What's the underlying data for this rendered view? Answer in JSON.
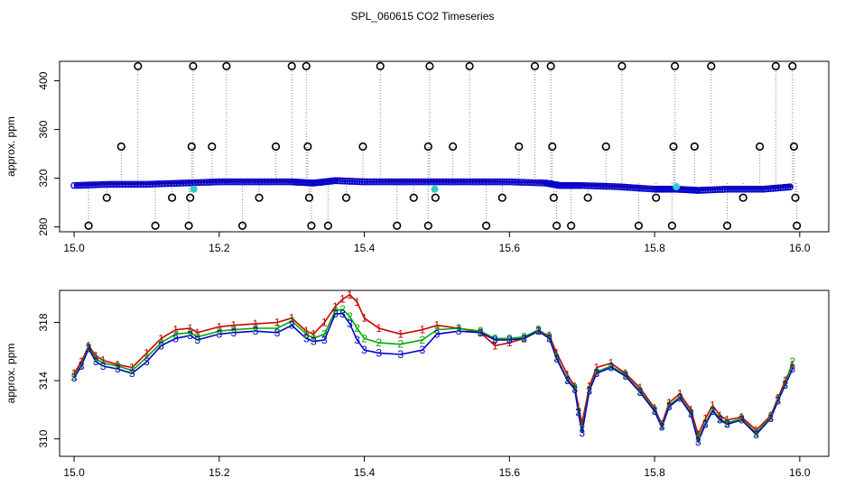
{
  "title": "SPL_060615  CO2 Timeseries",
  "chart_data": [
    {
      "type": "scatter",
      "ylabel": "approx. ppm",
      "xlim": [
        14.98,
        16.04
      ],
      "ylim": [
        276,
        416
      ],
      "xticks": [
        15.0,
        15.2,
        15.4,
        15.6,
        15.8,
        16.0
      ],
      "yticks": [
        280,
        320,
        360,
        400
      ],
      "grid": false,
      "baseline_series": [
        {
          "name": "red",
          "color": "#cc0000",
          "x": [
            15.0,
            15.05,
            15.1,
            15.15,
            15.2,
            15.25,
            15.3,
            15.33,
            15.36,
            15.4,
            15.45,
            15.5,
            15.55,
            15.6,
            15.65,
            15.67,
            15.7,
            15.75,
            15.8,
            15.83,
            15.86,
            15.9,
            15.95,
            15.99
          ],
          "y": [
            315,
            316,
            316,
            317,
            318,
            318,
            318,
            317,
            320,
            319,
            318,
            318,
            318,
            317,
            317,
            315,
            315,
            314,
            312,
            312,
            311,
            312,
            312,
            314
          ]
        },
        {
          "name": "blue",
          "color": "#0000cc",
          "x": [
            15.0,
            15.05,
            15.1,
            15.15,
            15.2,
            15.25,
            15.3,
            15.33,
            15.36,
            15.4,
            15.45,
            15.5,
            15.55,
            15.6,
            15.65,
            15.67,
            15.7,
            15.75,
            15.8,
            15.83,
            15.86,
            15.9,
            15.95,
            15.99
          ],
          "y": [
            314,
            315,
            315,
            316,
            317,
            317,
            317,
            316,
            318,
            317,
            317,
            317,
            317,
            317,
            316,
            314,
            314,
            313,
            311,
            311,
            310,
            311,
            311,
            313
          ]
        }
      ],
      "outliers": {
        "color": "#000000",
        "points": [
          {
            "x": 15.02,
            "y": 281
          },
          {
            "x": 15.045,
            "y": 304
          },
          {
            "x": 15.065,
            "y": 346
          },
          {
            "x": 15.088,
            "y": 412
          },
          {
            "x": 15.112,
            "y": 281
          },
          {
            "x": 15.135,
            "y": 304
          },
          {
            "x": 15.158,
            "y": 281
          },
          {
            "x": 15.16,
            "y": 304
          },
          {
            "x": 15.162,
            "y": 346
          },
          {
            "x": 15.164,
            "y": 412
          },
          {
            "x": 15.19,
            "y": 346
          },
          {
            "x": 15.21,
            "y": 412
          },
          {
            "x": 15.232,
            "y": 281
          },
          {
            "x": 15.255,
            "y": 304
          },
          {
            "x": 15.278,
            "y": 346
          },
          {
            "x": 15.3,
            "y": 412
          },
          {
            "x": 15.32,
            "y": 412
          },
          {
            "x": 15.322,
            "y": 346
          },
          {
            "x": 15.324,
            "y": 304
          },
          {
            "x": 15.327,
            "y": 281
          },
          {
            "x": 15.35,
            "y": 281
          },
          {
            "x": 15.375,
            "y": 304
          },
          {
            "x": 15.398,
            "y": 346
          },
          {
            "x": 15.422,
            "y": 412
          },
          {
            "x": 15.445,
            "y": 281
          },
          {
            "x": 15.468,
            "y": 304
          },
          {
            "x": 15.488,
            "y": 346
          },
          {
            "x": 15.49,
            "y": 412
          },
          {
            "x": 15.488,
            "y": 281
          },
          {
            "x": 15.498,
            "y": 304
          },
          {
            "x": 15.522,
            "y": 346
          },
          {
            "x": 15.545,
            "y": 412
          },
          {
            "x": 15.568,
            "y": 281
          },
          {
            "x": 15.59,
            "y": 304
          },
          {
            "x": 15.613,
            "y": 346
          },
          {
            "x": 15.635,
            "y": 412
          },
          {
            "x": 15.657,
            "y": 412
          },
          {
            "x": 15.659,
            "y": 346
          },
          {
            "x": 15.661,
            "y": 304
          },
          {
            "x": 15.665,
            "y": 281
          },
          {
            "x": 15.685,
            "y": 281
          },
          {
            "x": 15.708,
            "y": 304
          },
          {
            "x": 15.733,
            "y": 346
          },
          {
            "x": 15.755,
            "y": 412
          },
          {
            "x": 15.778,
            "y": 281
          },
          {
            "x": 15.802,
            "y": 304
          },
          {
            "x": 15.824,
            "y": 281
          },
          {
            "x": 15.826,
            "y": 346
          },
          {
            "x": 15.828,
            "y": 412
          },
          {
            "x": 15.855,
            "y": 346
          },
          {
            "x": 15.878,
            "y": 412
          },
          {
            "x": 15.9,
            "y": 281
          },
          {
            "x": 15.922,
            "y": 304
          },
          {
            "x": 15.945,
            "y": 346
          },
          {
            "x": 15.967,
            "y": 412
          },
          {
            "x": 15.99,
            "y": 412
          },
          {
            "x": 15.992,
            "y": 346
          },
          {
            "x": 15.994,
            "y": 304
          },
          {
            "x": 15.996,
            "y": 281
          }
        ]
      },
      "cyan_points": [
        {
          "x": 15.165,
          "y": 311
        },
        {
          "x": 15.497,
          "y": 311
        },
        {
          "x": 15.83,
          "y": 313
        }
      ]
    },
    {
      "type": "line",
      "ylabel": "approx. ppm",
      "xlim": [
        14.98,
        16.04
      ],
      "ylim": [
        308.8,
        320.2
      ],
      "xticks": [
        15.0,
        15.2,
        15.4,
        15.6,
        15.8,
        16.0
      ],
      "yticks": [
        310,
        314,
        318
      ],
      "grid": false,
      "series": [
        {
          "name": "1",
          "symbol": "1",
          "color": "#cc0000",
          "x": [
            15.0,
            15.01,
            15.02,
            15.03,
            15.04,
            15.06,
            15.08,
            15.1,
            15.12,
            15.14,
            15.16,
            15.17,
            15.2,
            15.22,
            15.25,
            15.28,
            15.3,
            15.32,
            15.33,
            15.345,
            15.36,
            15.37,
            15.38,
            15.39,
            15.4,
            15.42,
            15.45,
            15.48,
            15.5,
            15.53,
            15.56,
            15.58,
            15.6,
            15.62,
            15.64,
            15.655,
            15.665,
            15.68,
            15.69,
            15.695,
            15.7,
            15.71,
            15.72,
            15.74,
            15.76,
            15.78,
            15.8,
            15.81,
            15.82,
            15.835,
            15.85,
            15.86,
            15.87,
            15.88,
            15.89,
            15.9,
            15.92,
            15.94,
            15.96,
            15.97,
            15.98,
            15.99
          ],
          "y": [
            314.5,
            315.3,
            316.4,
            315.7,
            315.4,
            315.1,
            314.9,
            315.9,
            316.9,
            317.5,
            317.6,
            317.3,
            317.7,
            317.8,
            317.9,
            318.0,
            318.3,
            317.4,
            317.2,
            318.0,
            319.1,
            319.6,
            319.9,
            319.4,
            318.3,
            317.6,
            317.2,
            317.5,
            317.8,
            317.6,
            317.3,
            316.4,
            316.6,
            316.9,
            317.4,
            317.1,
            315.9,
            314.4,
            313.6,
            312.2,
            311.1,
            313.6,
            314.9,
            315.2,
            314.5,
            313.5,
            312.1,
            311.0,
            312.5,
            313.1,
            312.0,
            310.3,
            311.4,
            312.3,
            311.6,
            311.3,
            311.5,
            310.6,
            311.6,
            312.8,
            314.0,
            315.1
          ]
        },
        {
          "name": "2",
          "symbol": "2",
          "color": "#00aa00",
          "x": [
            15.0,
            15.01,
            15.02,
            15.03,
            15.04,
            15.06,
            15.08,
            15.1,
            15.12,
            15.14,
            15.16,
            15.17,
            15.2,
            15.22,
            15.25,
            15.28,
            15.3,
            15.32,
            15.33,
            15.345,
            15.36,
            15.37,
            15.38,
            15.39,
            15.4,
            15.42,
            15.45,
            15.48,
            15.5,
            15.53,
            15.56,
            15.58,
            15.6,
            15.62,
            15.64,
            15.655,
            15.665,
            15.68,
            15.69,
            15.695,
            15.7,
            15.71,
            15.72,
            15.74,
            15.76,
            15.78,
            15.8,
            15.81,
            15.82,
            15.835,
            15.85,
            15.86,
            15.87,
            15.88,
            15.89,
            15.9,
            15.92,
            15.94,
            15.96,
            15.97,
            15.98,
            15.99
          ],
          "y": [
            314.3,
            315.1,
            316.3,
            315.5,
            315.2,
            315.0,
            314.7,
            315.6,
            316.6,
            317.2,
            317.3,
            317.0,
            317.4,
            317.5,
            317.6,
            317.6,
            318.1,
            317.2,
            316.9,
            317.2,
            318.8,
            318.9,
            318.4,
            317.6,
            316.9,
            316.6,
            316.5,
            316.8,
            317.5,
            317.6,
            317.4,
            316.9,
            316.9,
            317.0,
            317.5,
            317.0,
            315.6,
            314.1,
            313.5,
            311.9,
            310.7,
            313.4,
            314.6,
            315.0,
            314.4,
            313.3,
            312.0,
            310.9,
            312.3,
            312.9,
            311.8,
            310.0,
            311.1,
            312.0,
            311.4,
            311.1,
            311.4,
            310.4,
            311.5,
            312.7,
            313.8,
            315.3
          ]
        },
        {
          "name": "3",
          "symbol": "3",
          "color": "#0000cc",
          "x": [
            15.0,
            15.01,
            15.02,
            15.03,
            15.04,
            15.06,
            15.08,
            15.1,
            15.12,
            15.14,
            15.16,
            15.17,
            15.2,
            15.22,
            15.25,
            15.28,
            15.3,
            15.32,
            15.33,
            15.345,
            15.36,
            15.37,
            15.38,
            15.39,
            15.4,
            15.42,
            15.45,
            15.48,
            15.5,
            15.53,
            15.56,
            15.58,
            15.6,
            15.62,
            15.64,
            15.655,
            15.665,
            15.68,
            15.69,
            15.695,
            15.7,
            15.71,
            15.72,
            15.74,
            15.76,
            15.78,
            15.8,
            15.81,
            15.82,
            15.835,
            15.85,
            15.86,
            15.87,
            15.88,
            15.89,
            15.9,
            15.92,
            15.94,
            15.96,
            15.97,
            15.98,
            15.99
          ],
          "y": [
            314.2,
            315.0,
            316.2,
            315.3,
            315.0,
            314.8,
            314.5,
            315.3,
            316.4,
            316.9,
            317.1,
            316.8,
            317.2,
            317.3,
            317.4,
            317.3,
            317.8,
            316.9,
            316.7,
            316.8,
            318.6,
            318.6,
            317.9,
            316.8,
            316.1,
            315.9,
            315.8,
            316.1,
            317.2,
            317.4,
            317.3,
            316.8,
            316.8,
            316.9,
            317.4,
            316.9,
            315.5,
            314.0,
            313.4,
            311.8,
            310.4,
            313.3,
            314.5,
            314.9,
            314.3,
            313.2,
            311.9,
            310.8,
            312.2,
            312.8,
            311.7,
            309.8,
            311.0,
            311.9,
            311.3,
            311.0,
            311.3,
            310.3,
            311.4,
            312.6,
            313.7,
            314.8
          ]
        }
      ]
    }
  ]
}
